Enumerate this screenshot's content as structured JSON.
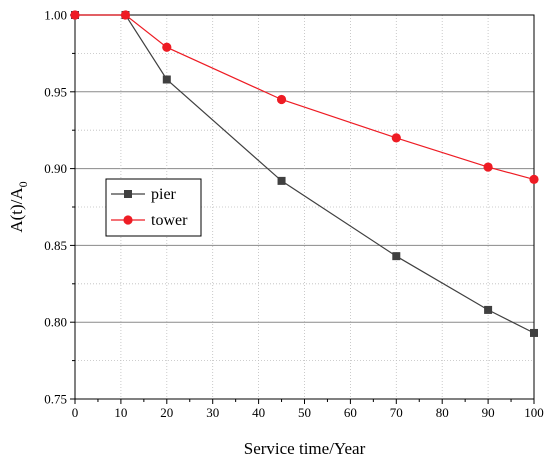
{
  "chart_data": {
    "type": "line",
    "xlabel": "Service time/Year",
    "ylabel_main": "A(t)/A",
    "ylabel_sub": "0",
    "xlim": [
      0,
      100
    ],
    "ylim": [
      0.75,
      1.0
    ],
    "xticks": [
      "0",
      "10",
      "20",
      "30",
      "40",
      "50",
      "60",
      "70",
      "80",
      "90",
      "100"
    ],
    "yticks": [
      "0.75",
      "0.80",
      "0.85",
      "0.90",
      "0.95",
      "1.00"
    ],
    "grid": "horizontal major and minor, both axes minor dotted",
    "legend_position": "center-left",
    "series": [
      {
        "name": "pier",
        "color": "#404040",
        "marker": "square",
        "x": [
          0,
          11,
          20,
          45,
          70,
          90,
          100
        ],
        "y": [
          1.0,
          1.0,
          0.958,
          0.892,
          0.843,
          0.808,
          0.793
        ]
      },
      {
        "name": "tower",
        "color": "#ee1c24",
        "marker": "circle",
        "x": [
          0,
          11,
          20,
          45,
          70,
          90,
          100
        ],
        "y": [
          1.0,
          1.0,
          0.979,
          0.945,
          0.92,
          0.901,
          0.893
        ]
      }
    ]
  }
}
